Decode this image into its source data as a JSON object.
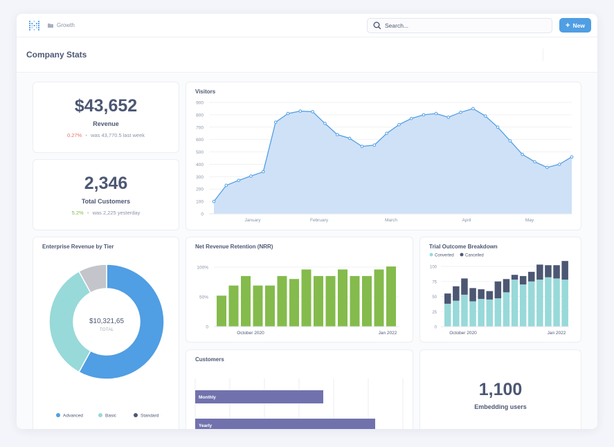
{
  "topbar": {
    "breadcrumb": "Growth",
    "search_placeholder": "Search...",
    "new_label": "New"
  },
  "dashboard": {
    "title": "Company Stats"
  },
  "revenue": {
    "value": "$43,652",
    "label": "Revenue",
    "change": "0.27%",
    "sep": "•",
    "previous": "was 43,770.5 last week"
  },
  "customers_total": {
    "value": "2,346",
    "label": "Total Customers",
    "change": "5.2%",
    "sep": "•",
    "previous": "was 2,225 yesterday"
  },
  "embedding": {
    "value": "1,100",
    "label": "Embedding users"
  },
  "colors": {
    "accent": "#509ee3",
    "green": "#84bb4c",
    "teal": "#98d9d9",
    "navy": "#4c5773",
    "purple": "#7172ad",
    "gray": "#c3c5cb",
    "area": "#cfe1f7"
  },
  "visitors": {
    "title": "Visitors",
    "chart_data": {
      "type": "area",
      "title": "Visitors",
      "x_ticks": [
        "January",
        "February",
        "March",
        "April",
        "May"
      ],
      "y_ticks": [
        "0",
        "100",
        "200",
        "300",
        "400",
        "500",
        "600",
        "700",
        "800",
        "900"
      ],
      "ylim": [
        0,
        900
      ],
      "values": [
        100,
        230,
        270,
        305,
        340,
        740,
        810,
        830,
        825,
        730,
        640,
        610,
        545,
        555,
        650,
        720,
        770,
        800,
        810,
        780,
        820,
        850,
        790,
        700,
        590,
        480,
        420,
        375,
        400,
        460
      ]
    }
  },
  "enterprise": {
    "title": "Enterprise Revenue by Tier",
    "center_value": "$10,321,65",
    "center_label": "TOTAL",
    "chart_data": {
      "type": "pie",
      "title": "Enterprise Revenue by Tier",
      "labels": [
        "Advanced",
        "Basic",
        "Standard"
      ],
      "values": [
        58,
        34,
        8
      ]
    },
    "legend": [
      "Advanced",
      "Basic",
      "Standard"
    ]
  },
  "nrr": {
    "title": "Net Revenue Retention (NRR)",
    "chart_data": {
      "type": "bar",
      "title": "Net Revenue Retention (NRR)",
      "values": [
        52,
        69,
        85,
        69,
        69,
        85,
        80,
        96,
        85,
        85,
        96,
        85,
        85,
        96,
        101
      ],
      "y_ticks": [
        "0",
        "50%",
        "100%"
      ],
      "ylim": [
        0,
        100
      ],
      "x_ticks": [
        "October 2020",
        "Jan 2022"
      ]
    }
  },
  "trial": {
    "title": "Trial Outcome Breakdown",
    "legend": [
      "Converted",
      "Cancelled"
    ],
    "chart_data": {
      "type": "bar",
      "title": "Trial Outcome Breakdown",
      "stacked": true,
      "series": [
        {
          "name": "Converted",
          "values": [
            38,
            43,
            53,
            42,
            46,
            45,
            47,
            57,
            78,
            70,
            75,
            78,
            82,
            80,
            78
          ]
        },
        {
          "name": "Cancelled",
          "values": [
            17,
            24,
            27,
            22,
            16,
            14,
            28,
            22,
            8,
            14,
            16,
            25,
            20,
            22,
            31
          ]
        }
      ],
      "y_ticks": [
        "0",
        "25",
        "50",
        "75",
        "100"
      ],
      "ylim": [
        0,
        100
      ],
      "x_ticks": [
        "October 2020",
        "Jan 2022"
      ]
    }
  },
  "customers_chart": {
    "title": "Customers",
    "chart_data": {
      "type": "bar",
      "orientation": "horizontal",
      "title": "Customers",
      "categories": [
        "Monthly",
        "Yearly"
      ],
      "values": [
        3.7,
        5.2
      ],
      "xlim": [
        0,
        6
      ]
    }
  }
}
